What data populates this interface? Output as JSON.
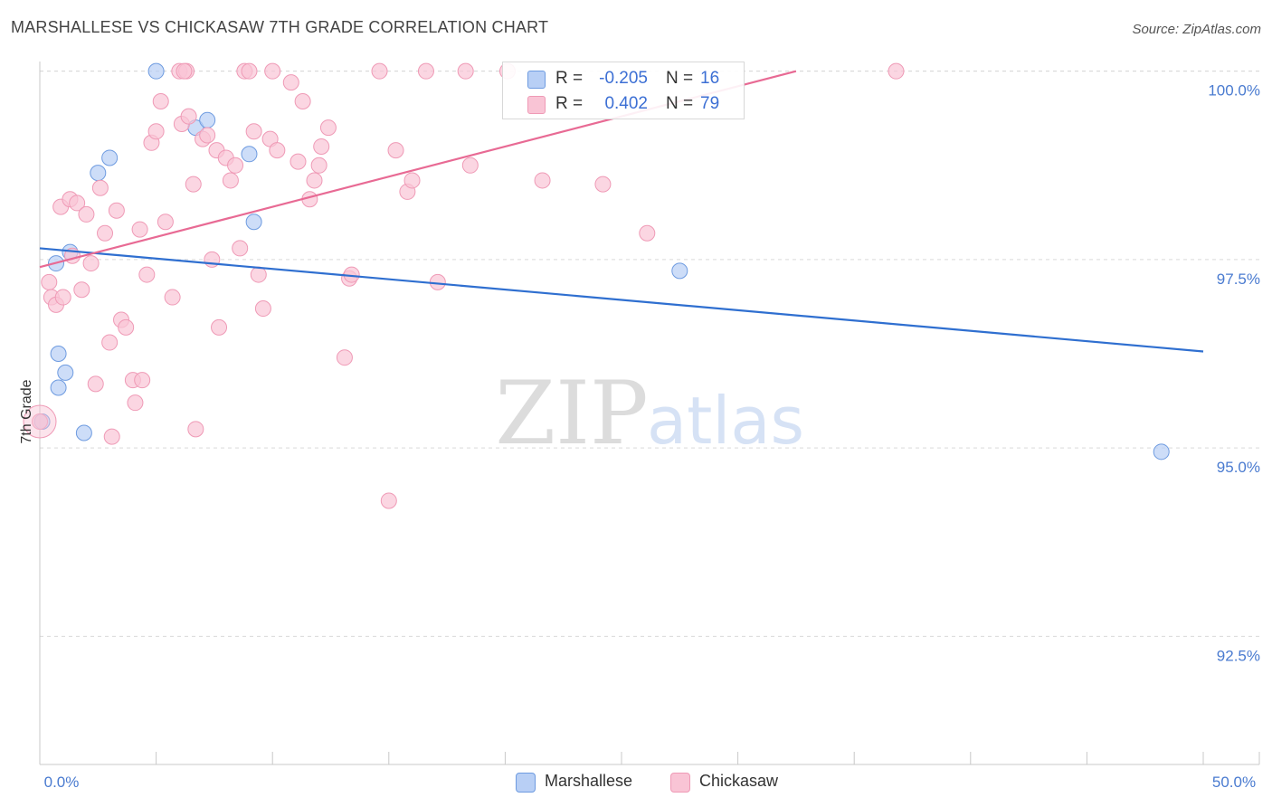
{
  "title": "MARSHALLESE VS CHICKASAW 7TH GRADE CORRELATION CHART",
  "source": "Source: ZipAtlas.com",
  "watermark": {
    "zip": "ZIP",
    "atlas": "atlas"
  },
  "colors": {
    "blue_fill": "#b8cff5",
    "blue_stroke": "#6e9be0",
    "blue_line": "#2f6fd0",
    "pink_fill": "#f9c4d5",
    "pink_stroke": "#ef9ab6",
    "pink_line": "#e86a94",
    "value_text": "#4a7bd0",
    "grid": "#d9d9d9"
  },
  "legend": {
    "rows": [
      {
        "label": "R =",
        "r": "-0.205",
        "n_label": "N =",
        "n": "16",
        "series": "blue"
      },
      {
        "label": "R =",
        "r": "0.402",
        "n_label": "N =",
        "n": "79",
        "series": "pink"
      }
    ]
  },
  "bottom_legend": [
    {
      "name": "Marshallese",
      "series": "blue"
    },
    {
      "name": "Chickasaw",
      "series": "pink"
    }
  ],
  "chart_data": {
    "type": "scatter",
    "title": "MARSHALLESE VS CHICKASAW 7TH GRADE CORRELATION CHART",
    "xlabel": "",
    "ylabel": "7th Grade",
    "xlim": [
      0,
      50
    ],
    "ylim": [
      90.8,
      100.2
    ],
    "x_tick_labels": [
      {
        "value": 0,
        "label": "0.0%"
      },
      {
        "value": 50,
        "label": "50.0%"
      }
    ],
    "y_tick_labels": [
      {
        "value": 100.0,
        "label": "100.0%"
      },
      {
        "value": 97.5,
        "label": "97.5%"
      },
      {
        "value": 95.0,
        "label": "95.0%"
      },
      {
        "value": 92.5,
        "label": "92.5%"
      }
    ],
    "x_minor_ticks": [
      0,
      5,
      10,
      15,
      20,
      25,
      30,
      35,
      40,
      45,
      50
    ],
    "series": [
      {
        "name": "Marshallese",
        "color": "blue",
        "trend": {
          "x": [
            0,
            50
          ],
          "y": [
            97.65,
            96.28
          ]
        },
        "points": [
          [
            0.1,
            95.35
          ],
          [
            0.8,
            96.25
          ],
          [
            0.7,
            97.45
          ],
          [
            1.3,
            97.6
          ],
          [
            0.8,
            95.8
          ],
          [
            1.1,
            96.0
          ],
          [
            1.9,
            95.2
          ],
          [
            2.5,
            98.65
          ],
          [
            3.0,
            98.85
          ],
          [
            5.0,
            100.0
          ],
          [
            6.7,
            99.25
          ],
          [
            7.2,
            99.35
          ],
          [
            9.0,
            98.9
          ],
          [
            9.2,
            98.0
          ],
          [
            27.5,
            97.35
          ],
          [
            48.2,
            94.95
          ]
        ]
      },
      {
        "name": "Chickasaw",
        "color": "pink",
        "trend": {
          "x": [
            0,
            32.5
          ],
          "y": [
            97.4,
            100.0
          ]
        },
        "points": [
          [
            0.0,
            95.35
          ],
          [
            0.4,
            97.2
          ],
          [
            0.5,
            97.0
          ],
          [
            0.7,
            96.9
          ],
          [
            0.9,
            98.2
          ],
          [
            1.0,
            97.0
          ],
          [
            1.3,
            98.3
          ],
          [
            1.4,
            97.55
          ],
          [
            1.6,
            98.25
          ],
          [
            1.8,
            97.1
          ],
          [
            2.0,
            98.1
          ],
          [
            2.2,
            97.45
          ],
          [
            2.4,
            95.85
          ],
          [
            2.6,
            98.45
          ],
          [
            2.8,
            97.85
          ],
          [
            3.0,
            96.4
          ],
          [
            3.1,
            95.15
          ],
          [
            3.3,
            98.15
          ],
          [
            3.5,
            96.7
          ],
          [
            3.7,
            96.6
          ],
          [
            4.0,
            95.9
          ],
          [
            4.1,
            95.6
          ],
          [
            4.3,
            97.9
          ],
          [
            4.4,
            95.9
          ],
          [
            4.6,
            97.3
          ],
          [
            4.8,
            99.05
          ],
          [
            5.0,
            99.2
          ],
          [
            5.2,
            99.6
          ],
          [
            5.4,
            98.0
          ],
          [
            5.7,
            97.0
          ],
          [
            6.0,
            100.0
          ],
          [
            6.1,
            99.3
          ],
          [
            6.3,
            100.0
          ],
          [
            6.4,
            99.4
          ],
          [
            6.6,
            98.5
          ],
          [
            6.7,
            95.25
          ],
          [
            7.0,
            99.1
          ],
          [
            7.2,
            99.15
          ],
          [
            7.4,
            97.5
          ],
          [
            7.6,
            98.95
          ],
          [
            7.7,
            96.6
          ],
          [
            8.0,
            98.85
          ],
          [
            8.2,
            98.55
          ],
          [
            8.4,
            98.75
          ],
          [
            8.6,
            97.65
          ],
          [
            8.8,
            100.0
          ],
          [
            9.0,
            100.0
          ],
          [
            9.2,
            99.2
          ],
          [
            9.4,
            97.3
          ],
          [
            9.6,
            96.85
          ],
          [
            9.9,
            99.1
          ],
          [
            10.2,
            98.95
          ],
          [
            10.8,
            99.85
          ],
          [
            11.1,
            98.8
          ],
          [
            11.3,
            99.6
          ],
          [
            11.6,
            98.3
          ],
          [
            11.8,
            98.55
          ],
          [
            12.0,
            98.75
          ],
          [
            12.1,
            99.0
          ],
          [
            12.4,
            99.25
          ],
          [
            13.1,
            96.2
          ],
          [
            13.3,
            97.25
          ],
          [
            13.4,
            97.3
          ],
          [
            14.6,
            100.0
          ],
          [
            15.0,
            94.3
          ],
          [
            15.3,
            98.95
          ],
          [
            15.8,
            98.4
          ],
          [
            16.0,
            98.55
          ],
          [
            16.6,
            100.0
          ],
          [
            17.1,
            97.2
          ],
          [
            18.3,
            100.0
          ],
          [
            18.5,
            98.75
          ],
          [
            20.1,
            100.0
          ],
          [
            21.6,
            98.55
          ],
          [
            24.2,
            98.5
          ],
          [
            26.1,
            97.85
          ],
          [
            36.8,
            100.0
          ],
          [
            6.2,
            100.0
          ],
          [
            10.0,
            100.0
          ]
        ]
      }
    ]
  }
}
